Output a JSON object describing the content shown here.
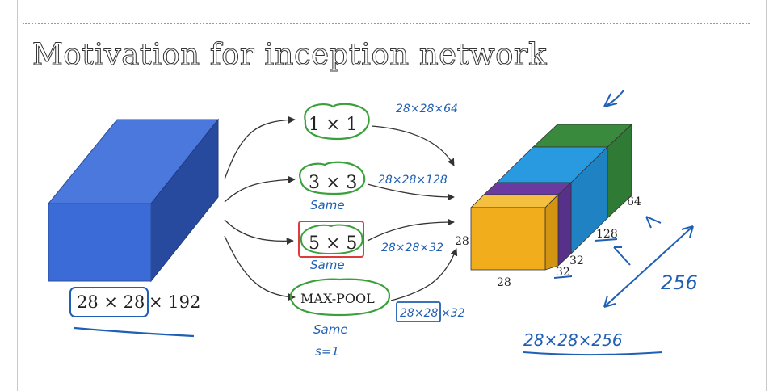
{
  "slide": {
    "title": "Motivation for inception network"
  },
  "input_volume": {
    "dims_boxed": "28 × 28",
    "dims_rest": "× 192",
    "color_front": "#3b6bd6",
    "color_top": "#4a78dc",
    "color_side": "#274a9e"
  },
  "ops": [
    {
      "label": "1 × 1",
      "output_note": "28×28×64"
    },
    {
      "label": "3 × 3",
      "output_note": "28×28×128",
      "padding_note": "Same"
    },
    {
      "label": "5 × 5",
      "output_note": "28×28×32",
      "padding_note": "Same"
    },
    {
      "label": "MAX-POOL",
      "output_note_boxed": "28×28",
      "output_note_rest": "×32",
      "padding_note": "Same",
      "stride_note": "s=1"
    }
  ],
  "output_volume": {
    "height_label": "28",
    "width_label": "28",
    "depth_labels": [
      "32",
      "32",
      "128",
      "64"
    ],
    "total_channels_note": "256",
    "total_dims_note": "28×28×256",
    "colors": {
      "pool": "#6a3aa0",
      "conv5": "#6a3aa0",
      "conv3": "#2a9ae0",
      "conv1": "#3a8a3e",
      "front": "#f2ad1c"
    }
  },
  "annotation_colors": {
    "green": "#3aa03a",
    "red": "#e03b3b",
    "blue_ink": "#1f5fb5"
  }
}
